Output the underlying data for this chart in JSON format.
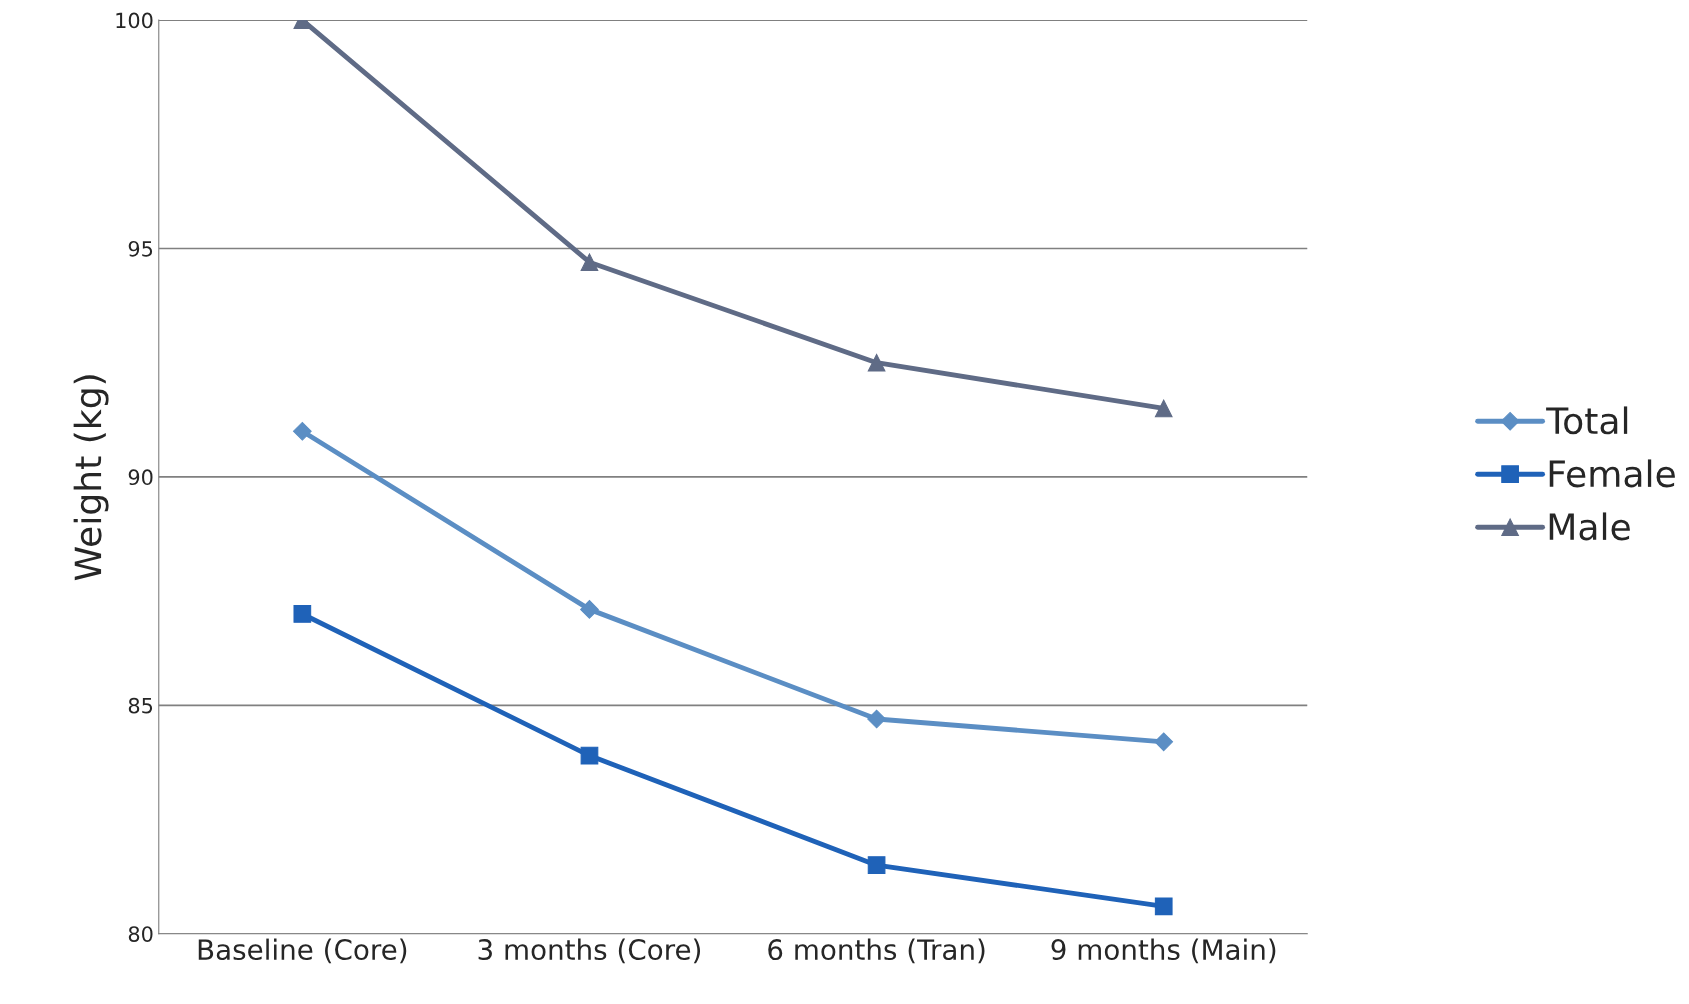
{
  "chart_data": {
    "type": "line",
    "ylabel": "Weight (kg)",
    "categories": [
      "Baseline (Core)",
      "3 months (Core)",
      "6 months (Tran)",
      "9 months (Main)"
    ],
    "series": [
      {
        "name": "Total",
        "color": "#5b8ec4",
        "marker": "diamond",
        "values": [
          91.0,
          87.1,
          84.7,
          84.2
        ]
      },
      {
        "name": "Female",
        "color": "#1f62b8",
        "marker": "square",
        "values": [
          87.0,
          83.9,
          81.5,
          80.6
        ]
      },
      {
        "name": "Male",
        "color": "#5f6b86",
        "marker": "triangle",
        "values": [
          100,
          94.7,
          92.5,
          91.5
        ]
      }
    ],
    "ylim": [
      80,
      100
    ],
    "yticks": [
      80,
      85,
      90,
      95,
      100
    ],
    "grid": "y",
    "legend": "right"
  }
}
